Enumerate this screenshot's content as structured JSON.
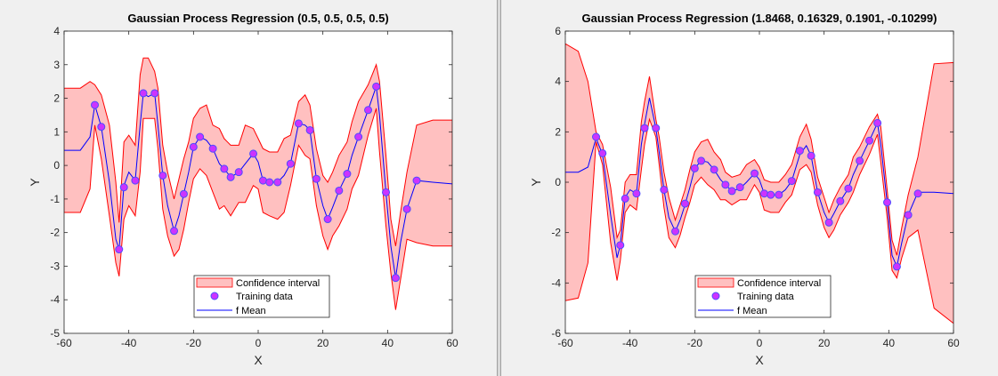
{
  "colors": {
    "figure_bg": "#f0f0f0",
    "axes_bg": "#ffffff",
    "band_fill": "#ffc0c0",
    "band_edge": "#ff0000",
    "mean_line": "#0000ff",
    "marker_fill": "#cc33ff",
    "marker_edge": "#4d4dff",
    "axis_color": "#262626"
  },
  "chart_data": [
    {
      "type": "line",
      "title": "Gaussian Process Regression (0.5, 0.5, 0.5, 0.5)",
      "xlabel": "X",
      "ylabel": "Y",
      "xlim": [
        -60,
        60
      ],
      "ylim": [
        -5,
        4
      ],
      "xticks": [
        -60,
        -40,
        -20,
        0,
        20,
        40,
        60
      ],
      "yticks": [
        -5,
        -4,
        -3,
        -2,
        -1,
        0,
        1,
        2,
        3,
        4
      ],
      "grid": false,
      "legend_position": "bottom-center",
      "legend": [
        "Confidence interval",
        "Training data",
        "f Mean"
      ],
      "training_data": {
        "x": [
          -50.5,
          -48.5,
          -43,
          -41.5,
          -38,
          -35.5,
          -32,
          -29.5,
          -26,
          -23,
          -20,
          -18,
          -14,
          -10.5,
          -8.5,
          -6,
          -1.5,
          1.5,
          3.5,
          6,
          10,
          12.5,
          16,
          18,
          21.5,
          25,
          27.5,
          31,
          34,
          36.5,
          39.5,
          42.5,
          46,
          49
        ],
        "y": [
          1.8,
          1.15,
          -2.5,
          -0.65,
          -0.45,
          2.15,
          2.15,
          -0.3,
          -1.95,
          -0.85,
          0.55,
          0.85,
          0.5,
          -0.1,
          -0.35,
          -0.2,
          0.35,
          -0.45,
          -0.5,
          -0.5,
          0.05,
          1.25,
          1.05,
          -0.4,
          -1.6,
          -0.75,
          -0.25,
          0.85,
          1.65,
          2.35,
          -0.8,
          -3.35,
          -1.3,
          -0.45
        ]
      },
      "mean": {
        "x": [
          -60,
          -55,
          -52,
          -50.5,
          -48.5,
          -46,
          -44,
          -43,
          -41.5,
          -40,
          -38,
          -36.5,
          -35.5,
          -34,
          -32,
          -31,
          -29.5,
          -28,
          -26,
          -24.5,
          -23,
          -21.5,
          -20,
          -18,
          -16,
          -14,
          -12,
          -10.5,
          -8.5,
          -6,
          -4,
          -1.5,
          0,
          1.5,
          3.5,
          6,
          8,
          10,
          12.5,
          14.5,
          16,
          18,
          20,
          21.5,
          23,
          25,
          27.5,
          29,
          31,
          34,
          36.5,
          37.5,
          39.5,
          41,
          42.5,
          44,
          46,
          49,
          54,
          60
        ],
        "y": [
          0.45,
          0.45,
          0.85,
          1.8,
          1.15,
          -0.5,
          -2.2,
          -2.5,
          -0.6,
          -0.2,
          -0.45,
          1.2,
          2.15,
          2.05,
          2.15,
          1.2,
          -0.3,
          -1.2,
          -1.95,
          -1.5,
          -0.85,
          -0.2,
          0.55,
          0.85,
          0.75,
          0.5,
          0.05,
          -0.1,
          -0.35,
          -0.2,
          0.05,
          0.35,
          0.1,
          -0.45,
          -0.5,
          -0.5,
          -0.3,
          0.05,
          1.25,
          1.2,
          1.05,
          -0.4,
          -1.2,
          -1.6,
          -1.25,
          -0.75,
          -0.25,
          0.3,
          0.85,
          1.65,
          2.35,
          1.5,
          -0.8,
          -2.4,
          -3.35,
          -2.3,
          -1.3,
          -0.45,
          -0.5,
          -0.55
        ]
      },
      "confidence_interval": {
        "x": [
          -60,
          -55,
          -52,
          -50.5,
          -48.5,
          -46,
          -44,
          -43,
          -41.5,
          -40,
          -38,
          -36.5,
          -35.5,
          -34,
          -32,
          -31,
          -29.5,
          -28,
          -26,
          -24.5,
          -23,
          -21.5,
          -20,
          -18,
          -16,
          -14,
          -12,
          -10.5,
          -8.5,
          -6,
          -4,
          -1.5,
          0,
          1.5,
          3.5,
          6,
          8,
          10,
          12.5,
          14.5,
          16,
          18,
          20,
          21.5,
          23,
          25,
          27.5,
          29,
          31,
          34,
          36.5,
          37.5,
          39.5,
          41,
          42.5,
          44,
          46,
          49,
          54,
          60
        ],
        "upper": [
          2.3,
          2.3,
          2.5,
          2.4,
          2.1,
          1.2,
          -0.5,
          -1.7,
          0.7,
          0.9,
          0.6,
          2.7,
          3.2,
          3.2,
          2.8,
          2.3,
          0.6,
          -0.2,
          -1.0,
          -0.4,
          0.2,
          0.7,
          1.4,
          1.7,
          1.8,
          1.2,
          1.1,
          0.8,
          0.6,
          0.6,
          1.2,
          1.1,
          0.8,
          0.5,
          0.4,
          0.4,
          0.8,
          0.9,
          1.9,
          2.1,
          1.8,
          0.5,
          -0.3,
          -0.5,
          -0.2,
          0.3,
          0.7,
          1.3,
          1.9,
          2.4,
          3.0,
          2.5,
          0.3,
          -1.6,
          -2.4,
          -1.4,
          -0.2,
          1.2,
          1.35,
          1.35
        ],
        "lower": [
          -1.4,
          -1.4,
          -0.7,
          1.2,
          0.2,
          -1.5,
          -2.9,
          -3.3,
          -1.6,
          -1.2,
          -1.5,
          -0.2,
          1.4,
          1.4,
          1.4,
          0.5,
          -1.3,
          -2.1,
          -2.7,
          -2.5,
          -1.9,
          -1.1,
          -0.4,
          -0.1,
          -0.3,
          -0.8,
          -1.3,
          -1.2,
          -1.5,
          -1.1,
          -1.1,
          -0.6,
          -0.7,
          -1.4,
          -1.5,
          -1.6,
          -1.4,
          -0.6,
          0.6,
          0.3,
          0.2,
          -1.2,
          -2.1,
          -2.5,
          -2.1,
          -1.8,
          -1.3,
          -0.7,
          -0.3,
          0.9,
          1.7,
          0.4,
          -1.8,
          -3.2,
          -4.3,
          -3.4,
          -2.2,
          -2.3,
          -2.4,
          -2.4
        ]
      }
    },
    {
      "type": "line",
      "title": "Gaussian Process Regression (1.8468, 0.16329, 0.1901, -0.10299)",
      "xlabel": "X",
      "ylabel": "Y",
      "xlim": [
        -60,
        60
      ],
      "ylim": [
        -6,
        6
      ],
      "xticks": [
        -60,
        -40,
        -20,
        0,
        20,
        40,
        60
      ],
      "yticks": [
        -6,
        -4,
        -2,
        0,
        2,
        4,
        6
      ],
      "grid": false,
      "legend_position": "bottom-center",
      "legend": [
        "Confidence interval",
        "Training data",
        "f Mean"
      ],
      "training_data": {
        "x": [
          -50.5,
          -48.5,
          -43,
          -41.5,
          -38,
          -35.5,
          -32,
          -29.5,
          -26,
          -23,
          -20,
          -18,
          -14,
          -10.5,
          -8.5,
          -6,
          -1.5,
          1.5,
          3.5,
          6,
          10,
          12.5,
          16,
          18,
          21.5,
          25,
          27.5,
          31,
          34,
          36.5,
          39.5,
          42.5,
          46,
          49
        ],
        "y": [
          1.8,
          1.15,
          -2.5,
          -0.65,
          -0.45,
          2.15,
          2.15,
          -0.3,
          -1.95,
          -0.85,
          0.55,
          0.85,
          0.5,
          -0.1,
          -0.35,
          -0.2,
          0.35,
          -0.45,
          -0.5,
          -0.5,
          0.05,
          1.25,
          1.05,
          -0.4,
          -1.6,
          -0.75,
          -0.25,
          0.85,
          1.65,
          2.35,
          -0.8,
          -3.35,
          -1.3,
          -0.45
        ]
      },
      "mean": {
        "x": [
          -60,
          -56,
          -53,
          -50.5,
          -48.5,
          -46,
          -44,
          -43,
          -41.5,
          -40,
          -38,
          -36.5,
          -35.5,
          -34,
          -32,
          -31,
          -29.5,
          -28,
          -26,
          -24.5,
          -23,
          -21.5,
          -20,
          -18,
          -16,
          -14,
          -12,
          -10.5,
          -8.5,
          -6,
          -4,
          -1.5,
          0,
          1.5,
          3.5,
          6,
          8,
          10,
          12.5,
          14.5,
          16,
          18,
          20,
          21.5,
          23,
          25,
          27.5,
          29,
          31,
          34,
          36.5,
          37.5,
          39.5,
          41,
          42.5,
          44,
          46,
          49,
          54,
          60
        ],
        "y": [
          0.4,
          0.4,
          0.6,
          1.75,
          1.1,
          -1.3,
          -3.0,
          -2.5,
          -0.6,
          -0.3,
          -0.45,
          1.5,
          2.3,
          3.35,
          2.15,
          1.2,
          -0.3,
          -1.4,
          -1.95,
          -1.5,
          -0.9,
          -0.2,
          0.55,
          0.85,
          0.8,
          0.5,
          0.1,
          -0.1,
          -0.35,
          -0.25,
          0.0,
          0.35,
          0.1,
          -0.45,
          -0.5,
          -0.5,
          -0.3,
          0.05,
          1.1,
          1.45,
          1.05,
          -0.4,
          -1.2,
          -1.6,
          -1.25,
          -0.75,
          -0.25,
          0.3,
          0.85,
          1.65,
          2.35,
          1.5,
          -0.8,
          -2.9,
          -3.35,
          -2.4,
          -1.3,
          -0.4,
          -0.4,
          -0.45
        ]
      },
      "confidence_interval": {
        "x": [
          -60,
          -56,
          -53,
          -50.5,
          -48.5,
          -46,
          -44,
          -43,
          -41.5,
          -40,
          -38,
          -36.5,
          -35.5,
          -34,
          -32,
          -31,
          -29.5,
          -28,
          -26,
          -24.5,
          -23,
          -21.5,
          -20,
          -18,
          -16,
          -14,
          -12,
          -10.5,
          -8.5,
          -6,
          -4,
          -1.5,
          0,
          1.5,
          3.5,
          6,
          8,
          10,
          12.5,
          14.5,
          16,
          18,
          20,
          21.5,
          23,
          25,
          27.5,
          29,
          31,
          34,
          36.5,
          37.5,
          39.5,
          41,
          42.5,
          44,
          46,
          49,
          54,
          60
        ],
        "upper": [
          5.5,
          5.2,
          4.0,
          2.0,
          1.5,
          -0.2,
          -2.2,
          -1.9,
          0.0,
          0.3,
          0.3,
          2.4,
          3.2,
          4.2,
          2.5,
          1.8,
          0.4,
          -0.6,
          -1.5,
          -0.9,
          -0.3,
          0.5,
          1.2,
          1.6,
          1.7,
          1.2,
          0.9,
          0.4,
          0.2,
          0.3,
          0.7,
          0.9,
          0.6,
          0.1,
          0.0,
          0.0,
          0.3,
          0.7,
          1.8,
          2.3,
          1.7,
          0.2,
          -0.6,
          -1.2,
          -0.7,
          -0.2,
          0.3,
          1.0,
          1.4,
          2.2,
          2.7,
          2.2,
          -0.3,
          -2.3,
          -2.9,
          -1.8,
          -0.5,
          1.0,
          4.7,
          4.75
        ],
        "lower": [
          -4.7,
          -4.6,
          -3.2,
          1.6,
          0.7,
          -2.4,
          -3.9,
          -3.1,
          -1.2,
          -0.9,
          -1.1,
          0.5,
          1.5,
          2.5,
          1.8,
          0.7,
          -1.0,
          -2.2,
          -2.6,
          -2.1,
          -1.4,
          -0.8,
          -0.1,
          0.2,
          -0.1,
          -0.3,
          -0.7,
          -0.7,
          -0.9,
          -0.7,
          -0.7,
          -0.1,
          -0.4,
          -1.1,
          -1.2,
          -1.2,
          -0.8,
          -0.5,
          0.5,
          0.7,
          0.4,
          -0.9,
          -1.8,
          -2.2,
          -1.9,
          -1.3,
          -0.8,
          -0.4,
          0.3,
          1.1,
          1.9,
          0.8,
          -1.4,
          -3.5,
          -3.8,
          -3.0,
          -2.2,
          -1.9,
          -5.0,
          -5.6
        ]
      }
    }
  ]
}
